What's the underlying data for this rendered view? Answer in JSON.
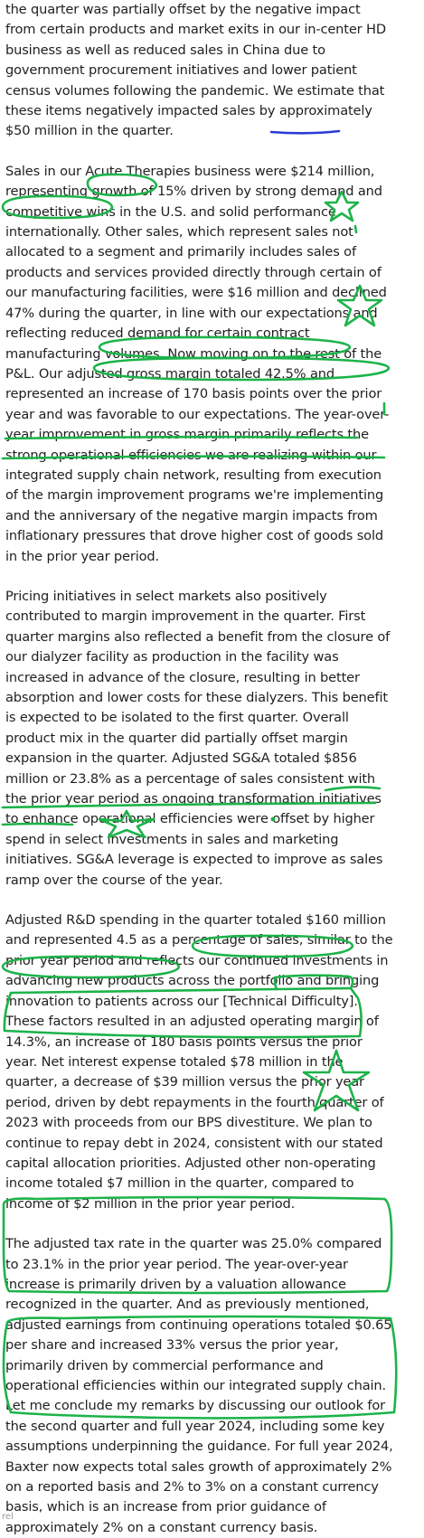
{
  "transcript": {
    "paragraphs": [
      "the quarter was partially offset by the negative impact from certain products and market exits in our in-center HD business as well as reduced sales in China due to government procurement initiatives and lower patient census volumes following the pandemic. We estimate that these items negatively impacted sales by approximately $50 million in the quarter.",
      "Sales in our Acute Therapies business were $214 million, representing growth of 15% driven by strong demand and competitive wins in the U.S. and solid performance internationally. Other sales, which represent sales not allocated to a segment and primarily includes sales of products and services provided directly through certain of our manufacturing facilities, were $16 million and declined 47% during the quarter, in line with our expectations and reflecting reduced demand for certain contract manufacturing volumes. Now moving on to the rest of the P&L. Our adjusted gross margin totaled 42.5% and represented an increase of 170 basis points over the prior year and was favorable to our expectations. The year-over-year improvement in gross margin primarily reflects the strong operational efficiencies we are realizing within our integrated supply chain network, resulting from execution of the margin improvement programs we're implementing and the anniversary of the negative margin impacts from inflationary pressures that drove higher cost of goods sold in the prior year period.",
      "Pricing initiatives in select markets also positively contributed to margin improvement in the quarter. First quarter margins also reflected a benefit from the closure of our dialyzer facility as production in the facility was increased in advance of the closure, resulting in better absorption and lower costs for these dialyzers. This benefit is expected to be isolated to the first quarter. Overall product mix in the quarter did partially offset margin expansion in the quarter. Adjusted SG&A totaled $856 million or 23.8% as a percentage of sales consistent with the prior year period as ongoing transformation initiatives to enhance operational efficiencies were offset by higher spend in select investments in sales and marketing initiatives. SG&A leverage is expected to improve as sales ramp over the course of the year.",
      "Adjusted R&D spending in the quarter totaled $160 million and represented 4.5 as a percentage of sales, similar to the prior year period and reflects our continued investments in advancing new products across the portfolio and bringing innovation to patients across our [Technical Difficulty]. These factors resulted in an adjusted operating margin of 14.3%, an increase of 180 basis points versus the prior year. Net interest expense totaled $78 million in the quarter, a decrease of $39 million versus the prior year period, driven by debt repayments in the fourth quarter of 2023 with proceeds from our BPS divestiture. We plan to continue to repay debt in 2024, consistent with our stated capital allocation priorities. Adjusted other non-operating income totaled $7 million in the quarter, compared to income of $2 million in the prior year period.",
      "The adjusted tax rate in the quarter was 25.0% compared to 23.1% in the prior year period. The year-over-year increase is primarily driven by a valuation allowance recognized in the quarter. And as previously mentioned, adjusted earnings from continuing operations totaled $0.65 per share and increased 33% versus the prior year, primarily driven by commercial performance and operational efficiencies within our integrated supply chain. Let me conclude my remarks by discussing our outlook for the second quarter and full year 2024, including some key assumptions underpinning the guidance. For full year 2024, Baxter now expects total sales growth of approximately 2% on a reported basis and 2% to 3% on a constant currency basis, which is an increase from prior guidance of approximately 2% on a constant currency basis."
    ],
    "corner_label": "rel"
  },
  "annotation_colors": {
    "highlighter": "#1db34a",
    "pen": "#2a3bd6"
  }
}
